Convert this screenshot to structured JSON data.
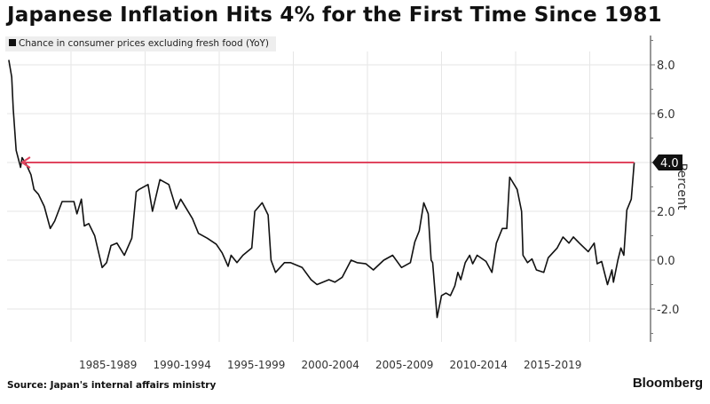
{
  "chart_data": {
    "type": "line",
    "title": "Japanese Inflation Hits 4% for the First Time Since 1981",
    "legend": "Chance in consumer prices excluding fresh food (YoY)",
    "legend_position": "top-left",
    "ylabel": "Percent",
    "ylim": [
      -3.3,
      9.4
    ],
    "xlim": [
      1980.6,
      2023.2
    ],
    "y_ticks": [
      "8.0",
      "6.0",
      "4.0",
      "2.0",
      "0.0",
      "-2.0"
    ],
    "y_tick_values": [
      8,
      6,
      4,
      2,
      0,
      -2
    ],
    "x_tick_labels": [
      "1985-1989",
      "1990-1994",
      "1995-1999",
      "2000-2004",
      "2005-2009",
      "2010-2014",
      "2015-2019"
    ],
    "x_tick_starts": [
      1985,
      1990,
      1995,
      2000,
      2005,
      2010,
      2015,
      2020
    ],
    "grid": true,
    "annotation": {
      "label": "4.0",
      "value": 4.0,
      "from_year": 1981.7,
      "color": "#e0455f"
    },
    "series": [
      {
        "name": "Chance in consumer prices excluding fresh food (YoY)",
        "color": "#111111",
        "points": [
          [
            1980.8,
            8.2
          ],
          [
            1981.0,
            7.5
          ],
          [
            1981.1,
            6.2
          ],
          [
            1981.3,
            4.5
          ],
          [
            1981.6,
            3.8
          ],
          [
            1981.7,
            4.2
          ],
          [
            1982.0,
            3.9
          ],
          [
            1982.3,
            3.5
          ],
          [
            1982.5,
            2.9
          ],
          [
            1982.8,
            2.7
          ],
          [
            1983.2,
            2.2
          ],
          [
            1983.6,
            1.3
          ],
          [
            1983.9,
            1.6
          ],
          [
            1984.4,
            2.4
          ],
          [
            1985.2,
            2.4
          ],
          [
            1985.4,
            1.9
          ],
          [
            1985.7,
            2.5
          ],
          [
            1985.9,
            1.4
          ],
          [
            1986.2,
            1.5
          ],
          [
            1986.6,
            1.0
          ],
          [
            1987.1,
            -0.3
          ],
          [
            1987.4,
            -0.1
          ],
          [
            1987.7,
            0.6
          ],
          [
            1988.1,
            0.7
          ],
          [
            1988.6,
            0.2
          ],
          [
            1989.1,
            0.9
          ],
          [
            1989.4,
            2.8
          ],
          [
            1989.6,
            2.9
          ],
          [
            1990.2,
            3.1
          ],
          [
            1990.5,
            2.0
          ],
          [
            1991.0,
            3.3
          ],
          [
            1991.6,
            3.1
          ],
          [
            1992.1,
            2.1
          ],
          [
            1992.4,
            2.5
          ],
          [
            1993.2,
            1.7
          ],
          [
            1993.6,
            1.1
          ],
          [
            1994.2,
            0.9
          ],
          [
            1994.8,
            0.65
          ],
          [
            1995.2,
            0.3
          ],
          [
            1995.6,
            -0.25
          ],
          [
            1995.8,
            0.2
          ],
          [
            1996.2,
            -0.1
          ],
          [
            1996.6,
            0.2
          ],
          [
            1997.2,
            0.5
          ],
          [
            1997.4,
            2.0
          ],
          [
            1997.9,
            2.35
          ],
          [
            1998.3,
            1.85
          ],
          [
            1998.5,
            0.0
          ],
          [
            1998.8,
            -0.5
          ],
          [
            1999.4,
            -0.1
          ],
          [
            1999.8,
            -0.1
          ],
          [
            2000.6,
            -0.3
          ],
          [
            2001.2,
            -0.8
          ],
          [
            2001.6,
            -1.0
          ],
          [
            2002.4,
            -0.8
          ],
          [
            2002.8,
            -0.9
          ],
          [
            2003.3,
            -0.7
          ],
          [
            2003.9,
            0.0
          ],
          [
            2004.3,
            -0.1
          ],
          [
            2004.9,
            -0.15
          ],
          [
            2005.4,
            -0.4
          ],
          [
            2006.1,
            0.0
          ],
          [
            2006.7,
            0.2
          ],
          [
            2007.3,
            -0.3
          ],
          [
            2007.9,
            -0.1
          ],
          [
            2008.2,
            0.75
          ],
          [
            2008.5,
            1.2
          ],
          [
            2008.8,
            2.35
          ],
          [
            2009.1,
            1.9
          ],
          [
            2009.3,
            0.0
          ],
          [
            2009.4,
            -0.1
          ],
          [
            2009.7,
            -2.35
          ],
          [
            2010.0,
            -1.45
          ],
          [
            2010.3,
            -1.35
          ],
          [
            2010.6,
            -1.45
          ],
          [
            2010.9,
            -1.05
          ],
          [
            2011.1,
            -0.5
          ],
          [
            2011.3,
            -0.8
          ],
          [
            2011.6,
            -0.1
          ],
          [
            2011.9,
            0.2
          ],
          [
            2012.1,
            -0.15
          ],
          [
            2012.4,
            0.2
          ],
          [
            2013.0,
            -0.05
          ],
          [
            2013.4,
            -0.5
          ],
          [
            2013.7,
            0.7
          ],
          [
            2014.1,
            1.3
          ],
          [
            2014.4,
            1.3
          ],
          [
            2014.6,
            3.4
          ],
          [
            2015.1,
            2.9
          ],
          [
            2015.4,
            2.0
          ],
          [
            2015.5,
            0.2
          ],
          [
            2015.8,
            -0.1
          ],
          [
            2016.1,
            0.05
          ],
          [
            2016.4,
            -0.4
          ],
          [
            2016.9,
            -0.5
          ],
          [
            2017.2,
            0.1
          ],
          [
            2017.8,
            0.5
          ],
          [
            2018.2,
            0.95
          ],
          [
            2018.6,
            0.7
          ],
          [
            2018.9,
            0.95
          ],
          [
            2019.3,
            0.7
          ],
          [
            2019.9,
            0.35
          ],
          [
            2020.3,
            0.7
          ],
          [
            2020.5,
            -0.15
          ],
          [
            2020.8,
            -0.05
          ],
          [
            2021.2,
            -1.0
          ],
          [
            2021.5,
            -0.4
          ],
          [
            2021.6,
            -0.9
          ],
          [
            2021.9,
            0.0
          ],
          [
            2022.1,
            0.5
          ],
          [
            2022.3,
            0.2
          ],
          [
            2022.5,
            2.05
          ],
          [
            2022.8,
            2.5
          ],
          [
            2023.0,
            4.0
          ]
        ]
      }
    ],
    "source": "Source: Japan's internal affairs ministry",
    "brand": "Bloomberg"
  }
}
